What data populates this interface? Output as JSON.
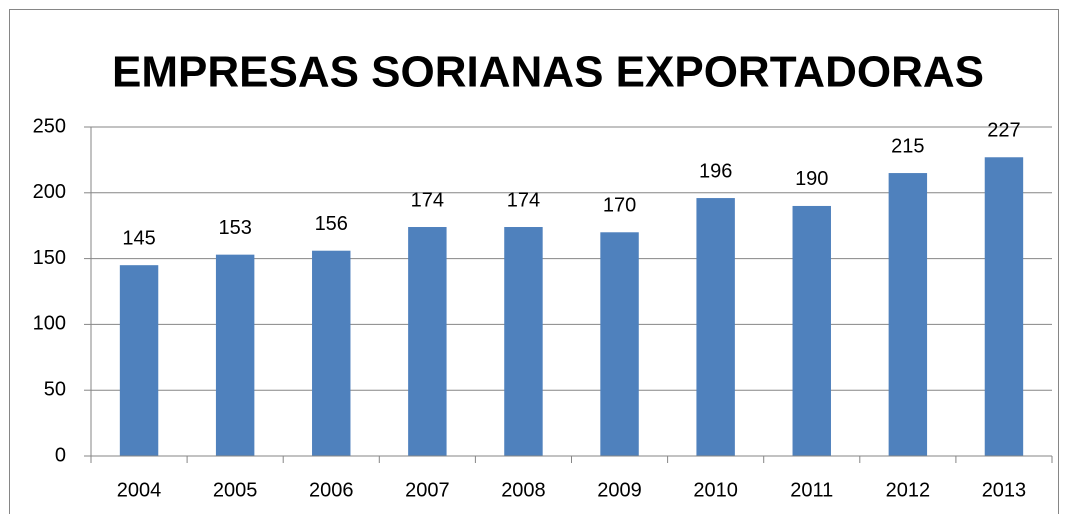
{
  "chart_data": {
    "type": "bar",
    "title": "EMPRESAS SORIANAS EXPORTADORAS",
    "categories": [
      "2004",
      "2005",
      "2006",
      "2007",
      "2008",
      "2009",
      "2010",
      "2011",
      "2012",
      "2013"
    ],
    "values": [
      145,
      153,
      156,
      174,
      174,
      170,
      196,
      190,
      215,
      227
    ],
    "color": "#4f81bd",
    "ylim": [
      0,
      250
    ],
    "yticks": [
      0,
      50,
      100,
      150,
      200,
      250
    ],
    "grid": true
  }
}
